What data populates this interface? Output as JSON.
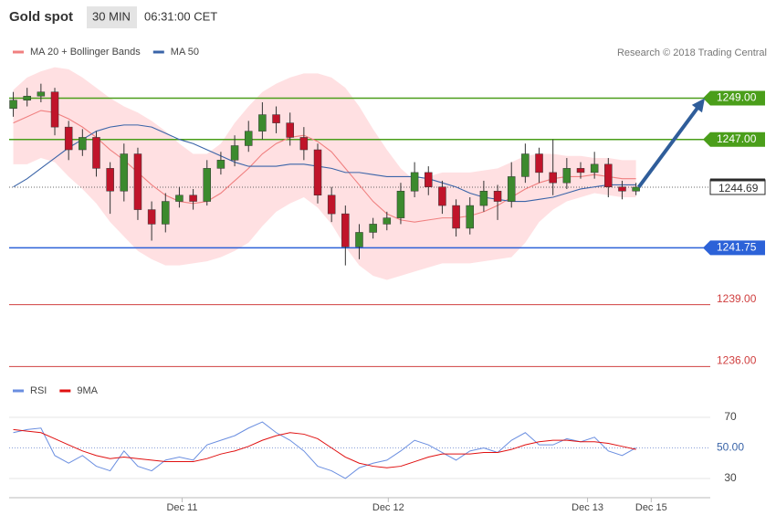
{
  "header": {
    "title": "Gold spot",
    "timeframe": "30 MIN",
    "time": "06:31:00 CET"
  },
  "chart_data": [
    {
      "type": "candlestick",
      "note": "Research © 2018 Trading Central",
      "xlim": [
        -0.3,
        50.5
      ],
      "ylim": [
        1235.4,
        1251.1
      ],
      "up_color": "#3c8a2e",
      "down_color": "#c0142a",
      "ohlc": [
        [
          1248.5,
          1249.3,
          1248.1,
          1248.9
        ],
        [
          1248.9,
          1249.5,
          1248.6,
          1249.1
        ],
        [
          1249.1,
          1249.7,
          1248.8,
          1249.3
        ],
        [
          1249.3,
          1249.5,
          1247.2,
          1247.6
        ],
        [
          1247.6,
          1247.9,
          1246.0,
          1246.5
        ],
        [
          1246.5,
          1247.5,
          1246.2,
          1247.1
        ],
        [
          1247.1,
          1247.4,
          1245.2,
          1245.6
        ],
        [
          1245.6,
          1245.9,
          1243.4,
          1244.5
        ],
        [
          1244.5,
          1246.8,
          1244.0,
          1246.3
        ],
        [
          1246.3,
          1246.6,
          1243.1,
          1243.6
        ],
        [
          1243.6,
          1244.0,
          1242.1,
          1242.9
        ],
        [
          1242.9,
          1244.4,
          1242.5,
          1244.0
        ],
        [
          1244.0,
          1244.7,
          1243.7,
          1244.3
        ],
        [
          1244.3,
          1244.6,
          1243.6,
          1244.0
        ],
        [
          1244.0,
          1246.0,
          1243.8,
          1245.6
        ],
        [
          1245.6,
          1246.4,
          1245.3,
          1246.0
        ],
        [
          1246.0,
          1247.2,
          1245.7,
          1246.7
        ],
        [
          1246.7,
          1247.9,
          1246.4,
          1247.4
        ],
        [
          1247.4,
          1248.8,
          1247.0,
          1248.2
        ],
        [
          1248.2,
          1248.6,
          1247.3,
          1247.8
        ],
        [
          1247.8,
          1248.3,
          1246.7,
          1247.1
        ],
        [
          1247.1,
          1247.6,
          1246.0,
          1246.5
        ],
        [
          1246.5,
          1246.8,
          1243.9,
          1244.3
        ],
        [
          1244.3,
          1244.7,
          1243.0,
          1243.4
        ],
        [
          1243.4,
          1243.8,
          1240.9,
          1241.8
        ],
        [
          1241.8,
          1242.9,
          1241.2,
          1242.5
        ],
        [
          1242.5,
          1243.2,
          1242.2,
          1242.9
        ],
        [
          1242.9,
          1243.5,
          1242.6,
          1243.2
        ],
        [
          1243.2,
          1244.9,
          1242.9,
          1244.5
        ],
        [
          1244.5,
          1245.9,
          1244.2,
          1245.4
        ],
        [
          1245.4,
          1245.7,
          1244.3,
          1244.7
        ],
        [
          1244.7,
          1245.0,
          1243.4,
          1243.8
        ],
        [
          1243.8,
          1244.1,
          1242.3,
          1242.7
        ],
        [
          1242.7,
          1244.2,
          1242.4,
          1243.8
        ],
        [
          1243.8,
          1245.0,
          1243.5,
          1244.5
        ],
        [
          1244.5,
          1244.8,
          1243.1,
          1244.0
        ],
        [
          1244.0,
          1245.9,
          1243.7,
          1245.2
        ],
        [
          1245.2,
          1246.8,
          1244.9,
          1246.3
        ],
        [
          1246.3,
          1246.6,
          1244.9,
          1245.4
        ],
        [
          1245.4,
          1247.0,
          1244.3,
          1244.9
        ],
        [
          1244.9,
          1246.1,
          1244.6,
          1245.6
        ],
        [
          1245.6,
          1245.9,
          1245.1,
          1245.4
        ],
        [
          1245.4,
          1246.4,
          1245.1,
          1245.8
        ],
        [
          1245.8,
          1246.1,
          1244.2,
          1244.7
        ],
        [
          1244.7,
          1245.0,
          1244.1,
          1244.5
        ],
        [
          1244.5,
          1244.9,
          1244.3,
          1244.69
        ]
      ],
      "series": [
        {
          "name": "MA 20 + Bollinger Bands",
          "color": "#f08080",
          "values": [
            1247.8,
            1248.1,
            1248.4,
            1248.3,
            1248.0,
            1247.6,
            1247.1,
            1246.5,
            1246.0,
            1245.4,
            1244.8,
            1244.3,
            1244.0,
            1243.9,
            1244.0,
            1244.4,
            1245.0,
            1245.6,
            1246.3,
            1246.8,
            1247.1,
            1247.2,
            1246.9,
            1246.4,
            1245.6,
            1244.8,
            1244.0,
            1243.4,
            1243.1,
            1243.0,
            1243.1,
            1243.2,
            1243.2,
            1243.3,
            1243.5,
            1243.8,
            1244.2,
            1244.6,
            1244.9,
            1245.1,
            1245.2,
            1245.2,
            1245.3,
            1245.2,
            1245.1,
            1245.1
          ]
        },
        {
          "name": "MA 50",
          "color": "#3a64a8",
          "values": [
            1244.7,
            1245.1,
            1245.6,
            1246.1,
            1246.6,
            1247.0,
            1247.4,
            1247.6,
            1247.7,
            1247.7,
            1247.6,
            1247.3,
            1247.0,
            1246.8,
            1246.5,
            1246.2,
            1245.9,
            1245.7,
            1245.7,
            1245.7,
            1245.8,
            1245.8,
            1245.7,
            1245.6,
            1245.4,
            1245.4,
            1245.3,
            1245.2,
            1245.2,
            1245.2,
            1245.1,
            1244.9,
            1244.7,
            1244.4,
            1244.2,
            1244.1,
            1244.0,
            1244.0,
            1244.1,
            1244.2,
            1244.4,
            1244.6,
            1244.7,
            1244.8,
            1244.8,
            1244.8
          ]
        }
      ],
      "bollinger": {
        "color": "#ffd6d8",
        "upper": [
          1249.4,
          1250.0,
          1250.3,
          1250.5,
          1250.4,
          1250.0,
          1249.5,
          1249.0,
          1248.6,
          1248.3,
          1247.9,
          1247.4,
          1246.8,
          1246.3,
          1246.3,
          1246.8,
          1247.8,
          1248.6,
          1249.3,
          1249.7,
          1250.0,
          1250.2,
          1250.2,
          1250.0,
          1249.5,
          1248.6,
          1247.5,
          1246.5,
          1245.6,
          1245.0,
          1245.2,
          1245.4,
          1245.4,
          1245.4,
          1245.5,
          1245.6,
          1245.9,
          1246.2,
          1246.3,
          1246.3,
          1246.2,
          1246.2,
          1246.1,
          1246.1,
          1246.0,
          1246.0
        ],
        "lower": [
          1245.8,
          1245.8,
          1246.1,
          1245.9,
          1245.2,
          1244.6,
          1243.9,
          1243.0,
          1242.3,
          1241.6,
          1241.2,
          1240.9,
          1240.9,
          1241.0,
          1241.1,
          1241.3,
          1241.6,
          1242.0,
          1242.8,
          1243.5,
          1243.9,
          1244.2,
          1243.7,
          1242.9,
          1241.8,
          1240.9,
          1240.4,
          1240.2,
          1240.4,
          1240.6,
          1240.8,
          1241.0,
          1241.0,
          1241.0,
          1241.1,
          1241.2,
          1241.3,
          1242.0,
          1243.0,
          1243.6,
          1244.0,
          1244.2,
          1244.4,
          1244.3,
          1244.2,
          1244.2
        ]
      },
      "levels": [
        {
          "value": 1249,
          "label": "1249.00",
          "color": "#4a9e1a",
          "box": true
        },
        {
          "value": 1247,
          "label": "1247.00",
          "color": "#4a9e1a",
          "box": true
        },
        {
          "value": 1244.69,
          "label": "1244.69",
          "color": "#2a2a2a",
          "box": false,
          "current": true
        },
        {
          "value": 1241.75,
          "label": "1241.75",
          "color": "#2c62d8",
          "box": true
        },
        {
          "value": 1239,
          "label": "1239.00",
          "color": "#d04040",
          "box": false
        },
        {
          "value": 1236,
          "label": "1236.00",
          "color": "#d04040",
          "box": false
        }
      ]
    },
    {
      "type": "line",
      "xlim": [
        -0.3,
        50.5
      ],
      "ylim": [
        20.4,
        77.2
      ],
      "yticks": [
        30,
        {
          "value": 50,
          "label": "50.00"
        },
        70
      ],
      "xticks": [
        {
          "value": 12.2,
          "label": "Dec 11"
        },
        {
          "value": 27.1,
          "label": "Dec 12"
        },
        {
          "value": 41.5,
          "label": "Dec 13"
        },
        {
          "value": 46.1,
          "label": "Dec 15"
        }
      ],
      "series": [
        {
          "name": "RSI",
          "color": "#6a8ee0",
          "values": [
            60,
            62,
            63,
            45,
            40,
            45,
            38,
            35,
            48,
            38,
            35,
            42,
            44,
            42,
            52,
            55,
            58,
            63,
            67,
            60,
            55,
            48,
            38,
            35,
            30,
            37,
            40,
            42,
            48,
            55,
            52,
            47,
            42,
            48,
            50,
            47,
            55,
            60,
            52,
            52,
            56,
            54,
            57,
            48,
            45,
            50
          ]
        },
        {
          "name": "9MA",
          "color": "#e01010",
          "values": [
            62,
            61,
            60,
            56,
            52,
            48,
            45,
            43,
            44,
            43,
            42,
            41,
            41,
            41,
            43,
            46,
            48,
            51,
            55,
            58,
            60,
            59,
            56,
            50,
            44,
            40,
            38,
            37,
            38,
            41,
            44,
            46,
            46,
            46,
            47,
            47,
            49,
            52,
            54,
            55,
            55,
            54,
            54,
            53,
            51,
            49
          ]
        }
      ]
    }
  ]
}
